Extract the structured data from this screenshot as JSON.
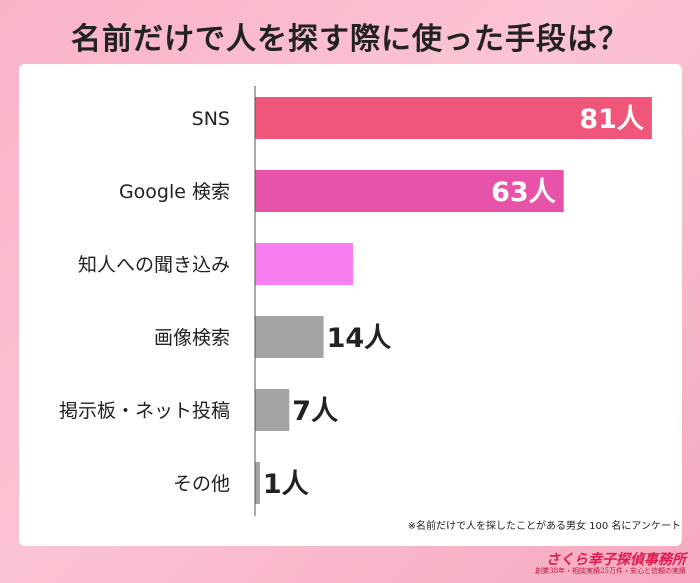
{
  "title": "名前だけで人を探す際に使った手段は？",
  "unit": "人",
  "note": "※名前だけで人を探したことがある男女 100 名にアンケート",
  "logo": {
    "main": "さくら幸子探偵事務所",
    "sub": "創業38年・相談実績25万件・安心と信頼の実績"
  },
  "chart_data": {
    "type": "bar",
    "orientation": "horizontal",
    "categories": [
      "SNS",
      "Google 検索",
      "知人への聞き込み",
      "画像検索",
      "掲示板・ネット投稿",
      "その他"
    ],
    "values": [
      81,
      63,
      20,
      14,
      7,
      1
    ],
    "xlim": [
      0,
      100
    ],
    "colors": [
      "#f0567a",
      "#e653a8",
      "#f97ff0",
      "#a4a4a4",
      "#a4a4a4",
      "#a4a4a4"
    ],
    "label_colors": [
      "#ffffff",
      "#ffffff",
      "#ffffff",
      "#222222",
      "#222222",
      "#222222"
    ],
    "grid": false,
    "legend": "none"
  }
}
